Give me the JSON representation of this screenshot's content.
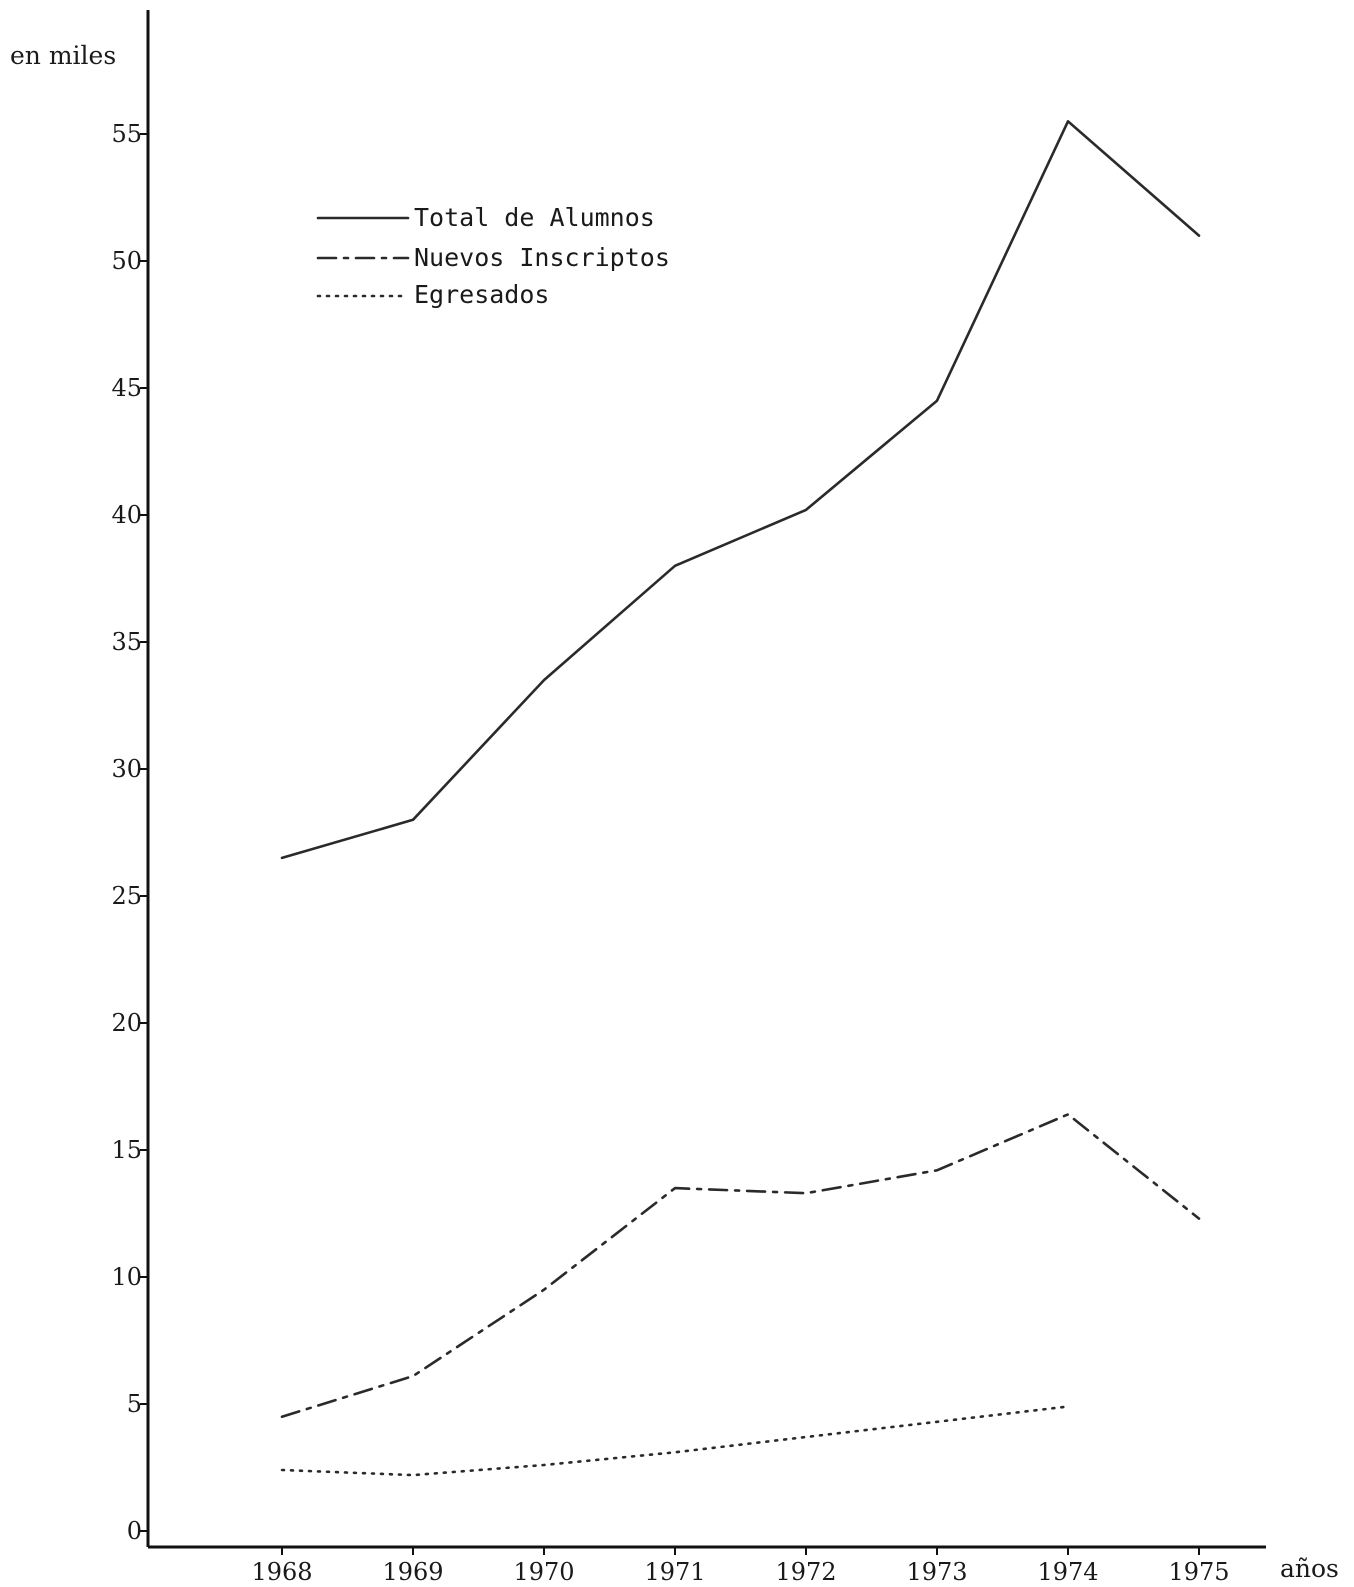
{
  "chart_data": {
    "type": "line",
    "title": "",
    "ylabel": "en miles",
    "xlabel": "años",
    "categories": [
      "1968",
      "1969",
      "1970",
      "1971",
      "1972",
      "1973",
      "1974",
      "1975"
    ],
    "ylim": [
      0,
      55
    ],
    "yticks": [
      "0",
      "5",
      "10",
      "15",
      "20",
      "25",
      "30",
      "35",
      "40",
      "45",
      "50",
      "55"
    ],
    "grid": false,
    "legend_position": "top-left",
    "series": [
      {
        "name": "Total de Alumnos",
        "style": "solid",
        "values": [
          26.5,
          28,
          33.5,
          38,
          40.2,
          44.5,
          55.5,
          51
        ]
      },
      {
        "name": "Nuevos Inscriptos",
        "style": "dash-dot",
        "values": [
          4.5,
          6.1,
          9.5,
          13.5,
          13.3,
          14.2,
          16.4,
          12.3
        ]
      },
      {
        "name": "Egresados",
        "style": "dotted",
        "values": [
          2.4,
          2.2,
          2.6,
          3.1,
          3.7,
          4.3,
          4.9,
          null
        ]
      }
    ]
  }
}
